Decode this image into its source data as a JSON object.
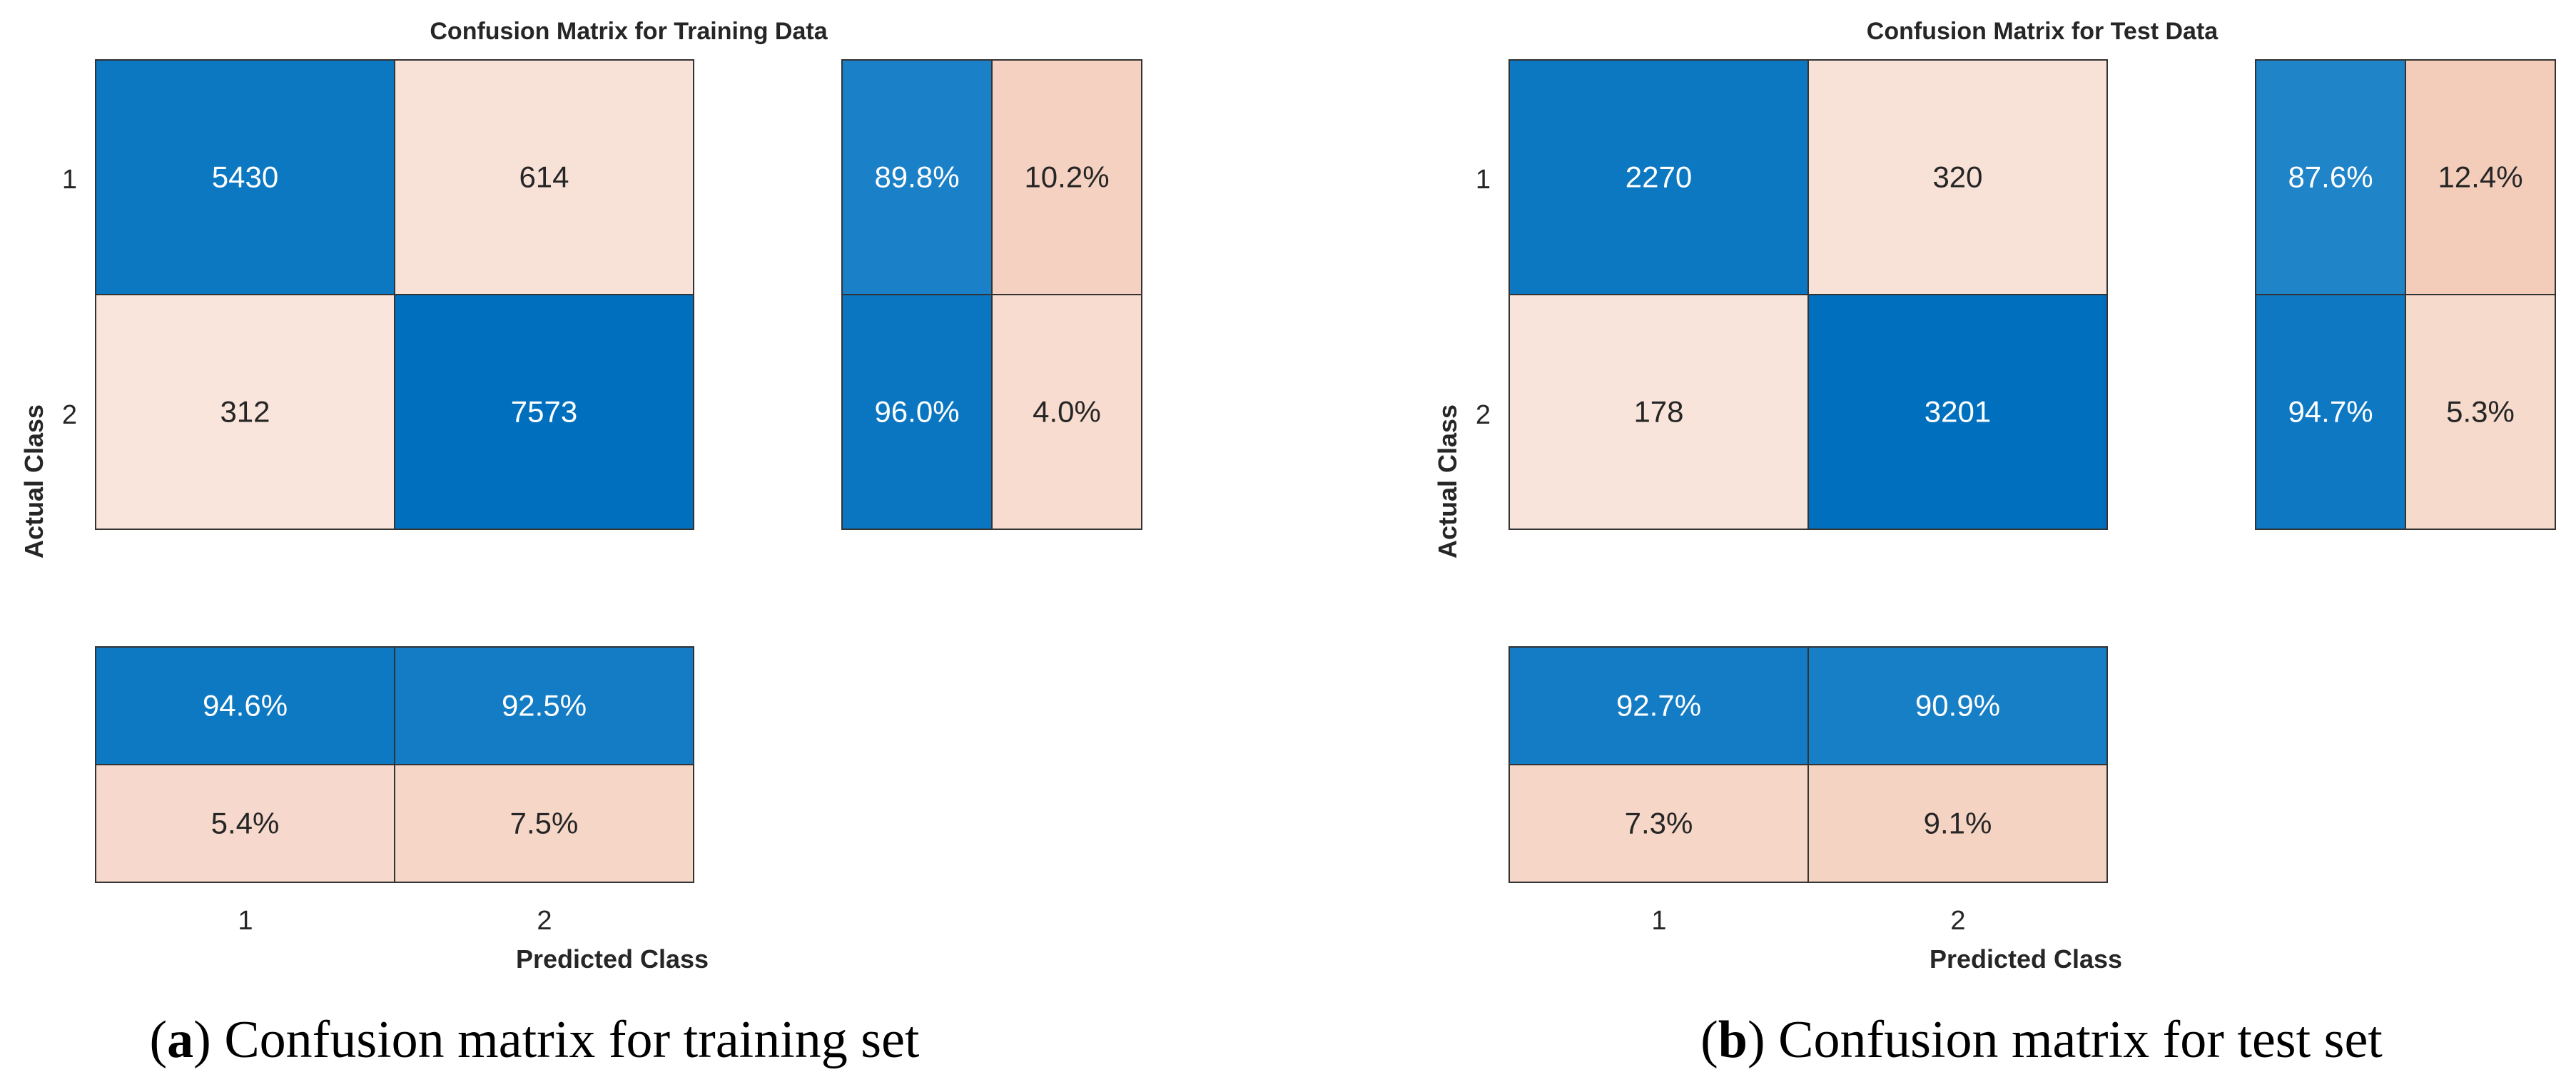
{
  "colors": {
    "blue_strong": "#0070be",
    "pink_light": "#f6d9cc",
    "text_dark": "#262626",
    "text_light": "#ffffff",
    "border": "#333333"
  },
  "chart_data": [
    {
      "type": "heatmap",
      "panel_letter": "a",
      "caption_text": "Confusion matrix for training set",
      "title": "Confusion Matrix for Training Data",
      "ylabel": "Actual Class",
      "xlabel": "Predicted Class",
      "row_labels": [
        "1",
        "2"
      ],
      "col_labels": [
        "1",
        "2"
      ],
      "matrix": [
        [
          5430,
          614
        ],
        [
          312,
          7573
        ]
      ],
      "row_summary": [
        [
          "89.8%",
          "10.2%"
        ],
        [
          "96.0%",
          "4.0%"
        ]
      ],
      "row_summary_values": [
        [
          89.8,
          10.2
        ],
        [
          96.0,
          4.0
        ]
      ],
      "col_summary": [
        [
          "94.6%",
          "92.5%"
        ],
        [
          "5.4%",
          "7.5%"
        ]
      ],
      "col_summary_values": [
        [
          94.6,
          92.5
        ],
        [
          5.4,
          7.5
        ]
      ]
    },
    {
      "type": "heatmap",
      "panel_letter": "b",
      "caption_text": "Confusion matrix for test set",
      "title": "Confusion Matrix for Test Data",
      "ylabel": "Actual Class",
      "xlabel": "Predicted Class",
      "row_labels": [
        "1",
        "2"
      ],
      "col_labels": [
        "1",
        "2"
      ],
      "matrix": [
        [
          2270,
          320
        ],
        [
          178,
          3201
        ]
      ],
      "row_summary": [
        [
          "87.6%",
          "12.4%"
        ],
        [
          "94.7%",
          "5.3%"
        ]
      ],
      "row_summary_values": [
        [
          87.6,
          12.4
        ],
        [
          94.7,
          5.3
        ]
      ],
      "col_summary": [
        [
          "92.7%",
          "90.9%"
        ],
        [
          "7.3%",
          "9.1%"
        ]
      ],
      "col_summary_values": [
        [
          92.7,
          90.9
        ],
        [
          7.3,
          9.1
        ]
      ]
    }
  ]
}
